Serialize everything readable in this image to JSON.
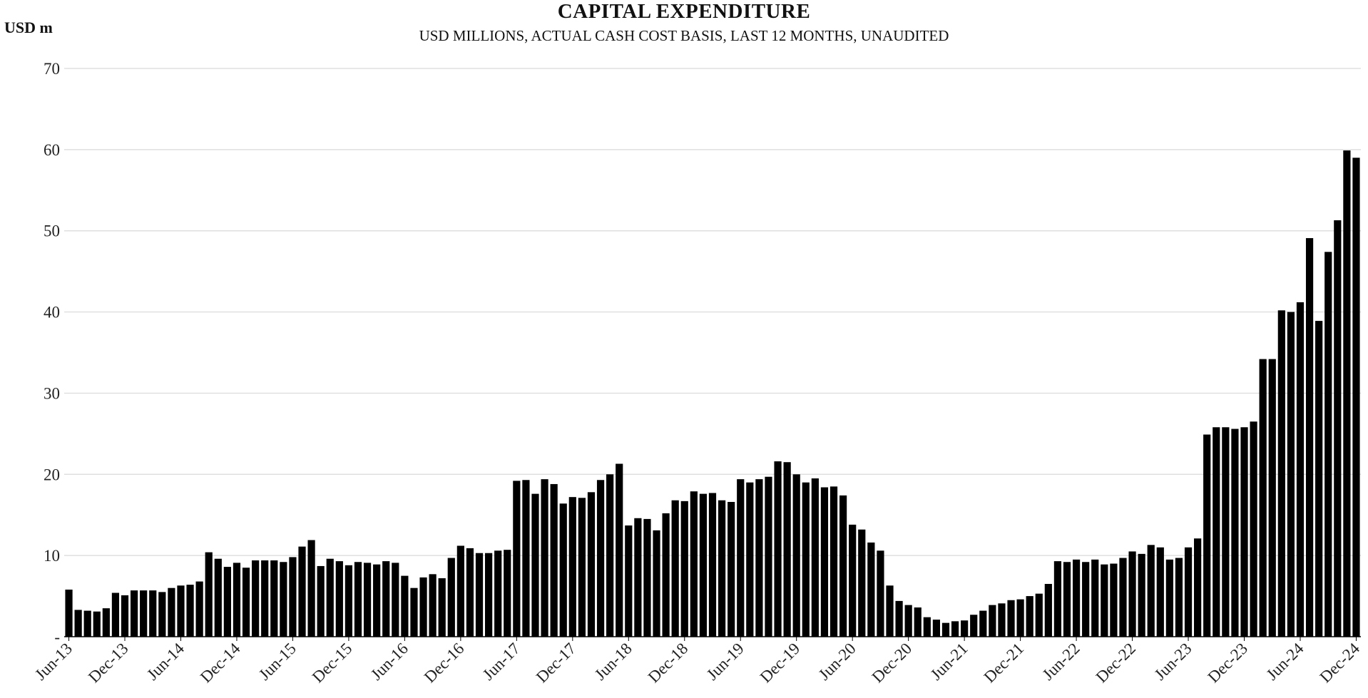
{
  "chart_data": {
    "type": "bar",
    "title": "CAPITAL EXPENDITURE",
    "subtitle": "USD MILLIONS, ACTUAL CASH COST BASIS, LAST 12 MONTHS, UNAUDITED",
    "ylabel": "USD m",
    "xlabel": "",
    "ylim": [
      0,
      70
    ],
    "yticks": [
      "-",
      "10",
      "20",
      "30",
      "40",
      "50",
      "60",
      "70"
    ],
    "x_tick_labels": [
      "Jun-13",
      "Dec-13",
      "Jun-14",
      "Dec-14",
      "Jun-15",
      "Dec-15",
      "Jun-16",
      "Dec-16",
      "Jun-17",
      "Dec-17",
      "Jun-18",
      "Dec-18",
      "Jun-19",
      "Dec-19",
      "Jun-20",
      "Dec-20",
      "Jun-21",
      "Dec-21",
      "Jun-22",
      "Dec-22",
      "Jun-23",
      "Dec-23",
      "Jun-24",
      "Dec-24"
    ],
    "bar_color": "#000000",
    "grid": true,
    "legend": "none",
    "values": [
      5.8,
      3.3,
      3.2,
      3.1,
      3.5,
      5.4,
      5.1,
      5.7,
      5.7,
      5.7,
      5.5,
      6.0,
      6.3,
      6.4,
      6.8,
      10.4,
      9.6,
      8.6,
      9.1,
      8.5,
      9.4,
      9.4,
      9.4,
      9.2,
      9.8,
      11.1,
      11.9,
      8.7,
      9.6,
      9.3,
      8.8,
      9.2,
      9.1,
      8.9,
      9.3,
      9.1,
      7.5,
      6.0,
      7.3,
      7.7,
      7.2,
      9.7,
      11.2,
      10.9,
      10.3,
      10.3,
      10.6,
      10.7,
      19.2,
      19.3,
      17.6,
      19.4,
      18.8,
      16.4,
      17.2,
      17.1,
      17.8,
      19.3,
      20.0,
      21.3,
      13.7,
      14.6,
      14.5,
      13.1,
      15.2,
      16.8,
      16.7,
      17.9,
      17.6,
      17.7,
      16.8,
      16.6,
      19.4,
      19.0,
      19.4,
      19.7,
      21.6,
      21.5,
      20.0,
      19.0,
      19.5,
      18.4,
      18.5,
      17.4,
      13.8,
      13.2,
      11.6,
      10.6,
      6.3,
      4.4,
      3.9,
      3.6,
      2.4,
      2.1,
      1.7,
      1.9,
      2.0,
      2.7,
      3.2,
      3.9,
      4.1,
      4.5,
      4.6,
      5.0,
      5.3,
      6.5,
      9.3,
      9.2,
      9.5,
      9.2,
      9.5,
      8.9,
      9.0,
      9.7,
      10.5,
      10.2,
      11.3,
      11.0,
      9.5,
      9.7,
      11.0,
      12.1,
      24.9,
      25.8,
      25.8,
      25.6,
      25.8,
      26.5,
      34.2,
      34.2,
      40.2,
      40.0,
      41.2,
      49.1,
      38.9,
      47.4,
      51.3,
      59.9,
      59.0
    ]
  }
}
